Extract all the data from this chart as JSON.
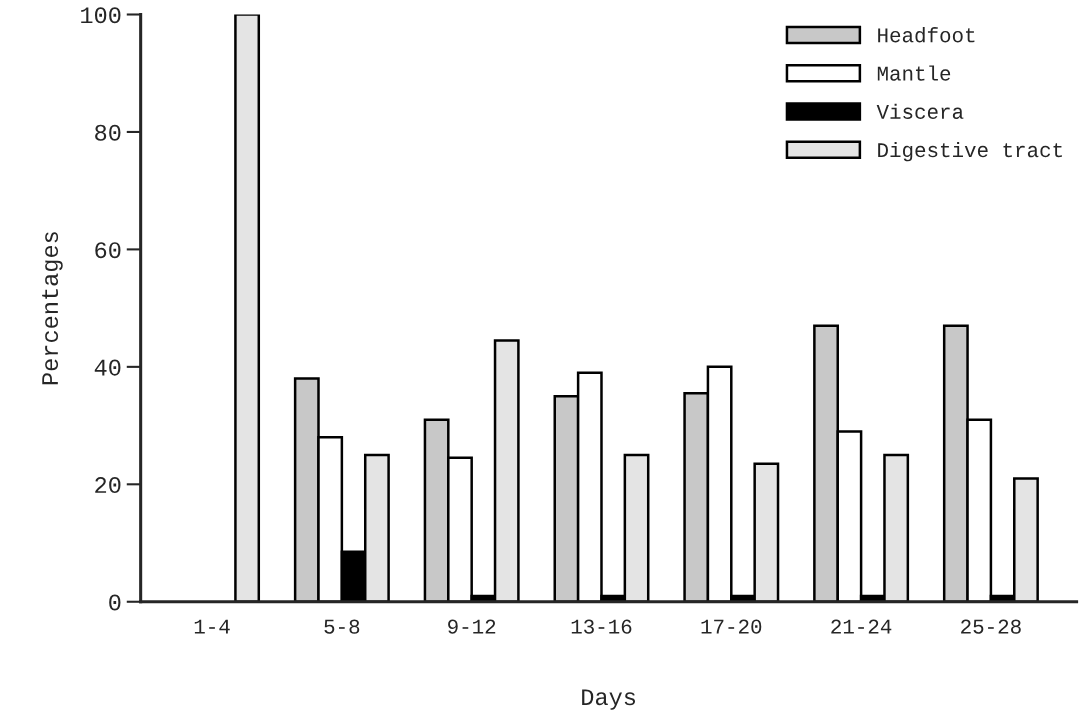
{
  "chart_data": {
    "type": "bar",
    "xlabel": "Days",
    "ylabel": "Percentages",
    "categories": [
      "1-4",
      "5-8",
      "9-12",
      "13-16",
      "17-20",
      "21-24",
      "25-28"
    ],
    "series": [
      {
        "name": "Headfoot",
        "color": "#c8c8c8",
        "values": [
          0,
          38,
          31,
          35,
          35.5,
          47,
          47
        ]
      },
      {
        "name": "Mantle",
        "color": "#ffffff",
        "values": [
          0,
          28,
          24.5,
          39,
          40,
          29,
          31
        ]
      },
      {
        "name": "Viscera",
        "color": "#000000",
        "values": [
          0,
          8.5,
          1,
          1,
          1,
          1,
          1
        ]
      },
      {
        "name": "Digestive tract",
        "color": "#e4e4e4",
        "values": [
          100,
          25,
          44.5,
          25,
          23.5,
          25,
          21
        ]
      }
    ],
    "ylim": [
      0,
      100
    ],
    "yticks": [
      0,
      20,
      40,
      60,
      80,
      100
    ],
    "grid": false,
    "legend": "top right"
  }
}
